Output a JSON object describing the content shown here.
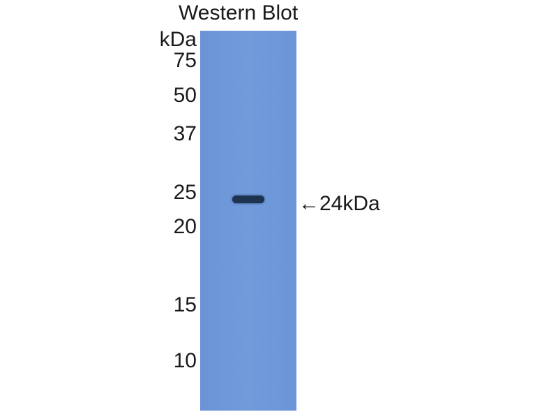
{
  "title": "Western Blot",
  "unit_label": "kDa",
  "markers": [
    "75",
    "50",
    "37",
    "25",
    "20",
    "15",
    "10"
  ],
  "band_annotation": "←24kDa",
  "colors": {
    "membrane": "#6e98d8",
    "band": "#1d3350"
  }
}
